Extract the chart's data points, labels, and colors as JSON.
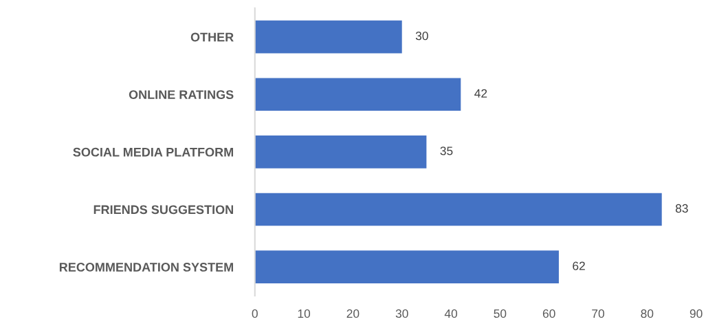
{
  "chart_data": {
    "type": "bar",
    "orientation": "horizontal",
    "categories": [
      "OTHER",
      "ONLINE RATINGS",
      "SOCIAL MEDIA PLATFORM",
      "FRIENDS SUGGESTION",
      "RECOMMENDATION SYSTEM"
    ],
    "values": [
      30,
      42,
      35,
      83,
      62
    ],
    "color": "#4472c4",
    "xlim": [
      0,
      90
    ],
    "xticks": [
      0,
      10,
      20,
      30,
      40,
      50,
      60,
      70,
      80,
      90
    ],
    "grid": false,
    "data_labels": true
  }
}
